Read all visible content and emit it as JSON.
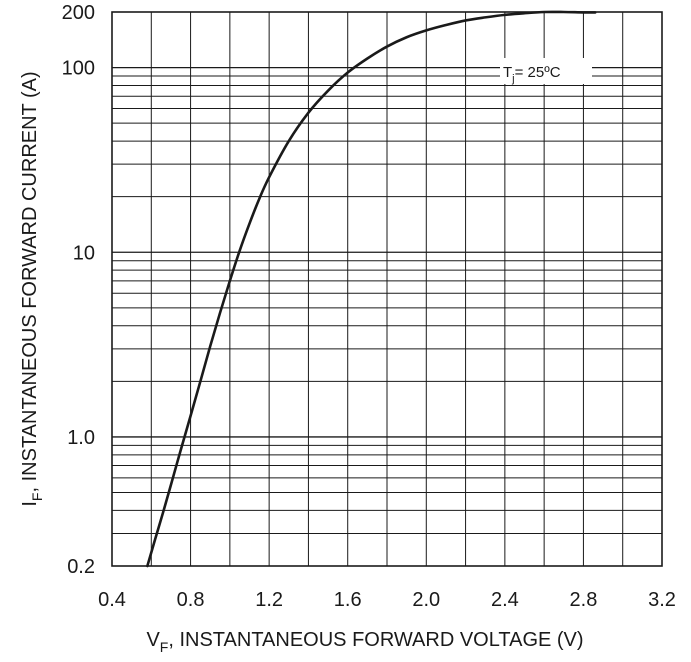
{
  "chart_data": {
    "type": "line",
    "title": "",
    "xlabel": {
      "main": "V",
      "sub": "F",
      "rest": ", INSTANTANEOUS FORWARD VOLTAGE (V)"
    },
    "ylabel": {
      "main": "I",
      "sub": "F",
      "rest": ", INSTANTANEOUS FORWARD CURRENT (A)"
    },
    "x_scale": "linear",
    "y_scale": "log",
    "xlim": [
      0.4,
      3.2
    ],
    "ylim": [
      0.2,
      200
    ],
    "x_ticks": [
      0.4,
      0.8,
      1.2,
      1.6,
      2.0,
      2.4,
      2.8,
      3.2
    ],
    "x_tick_labels": [
      "0.4",
      "0.8",
      "1.2",
      "1.6",
      "2.0",
      "2.4",
      "2.8",
      "3.2"
    ],
    "y_ticks": [
      0.2,
      1.0,
      10,
      100,
      200
    ],
    "y_tick_labels": [
      "0.2",
      "1.0",
      "10",
      "100",
      "200"
    ],
    "grid": true,
    "annotation": {
      "main": "T",
      "sub": "j",
      "rest": "=  25ºC"
    },
    "series": [
      {
        "color": "#1a1a1a",
        "x": [
          0.58,
          0.62,
          0.66,
          0.7,
          0.75,
          0.8,
          0.85,
          0.9,
          0.95,
          1.0,
          1.05,
          1.1,
          1.15,
          1.2,
          1.3,
          1.4,
          1.5,
          1.6,
          1.7,
          1.8,
          1.9,
          2.0,
          2.1,
          2.2,
          2.3,
          2.4,
          2.5,
          2.6,
          2.7,
          2.8,
          2.86
        ],
        "y": [
          0.2,
          0.28,
          0.39,
          0.55,
          0.85,
          1.3,
          2.0,
          3.1,
          4.7,
          7.0,
          10.2,
          14.3,
          19.5,
          25.5,
          40,
          57,
          75,
          94,
          112,
          130,
          146,
          159,
          170,
          180,
          187,
          193,
          197,
          200,
          200,
          199,
          199
        ]
      }
    ]
  }
}
